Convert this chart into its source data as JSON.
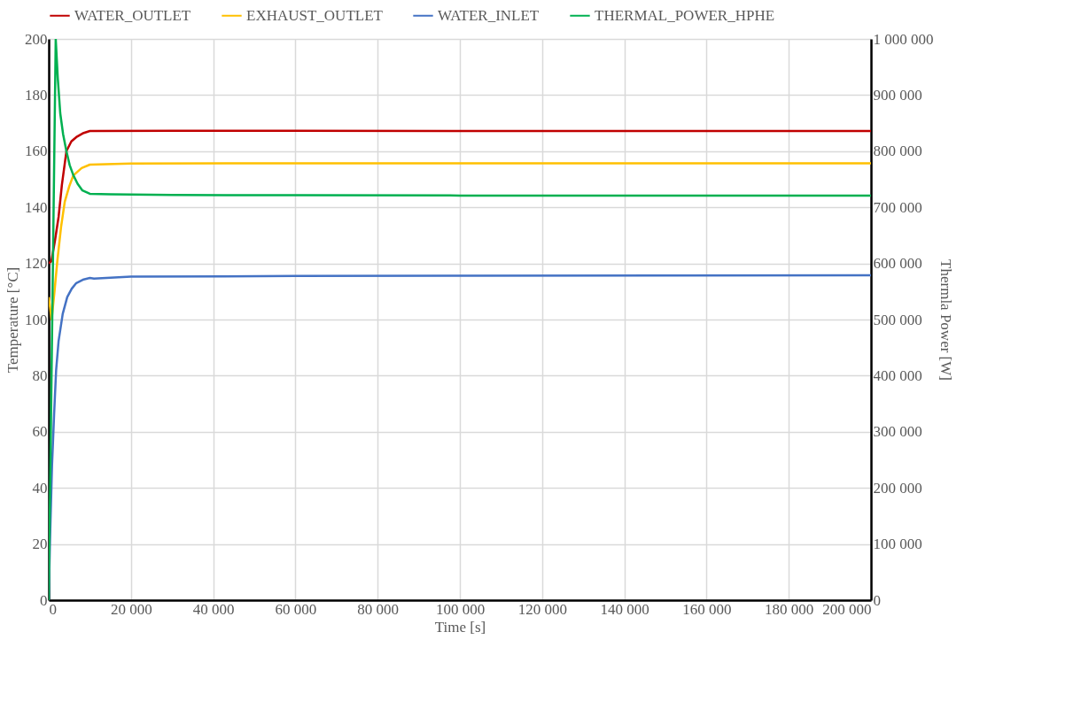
{
  "chart_data": {
    "type": "line",
    "xlabel": "Time [s]",
    "ylabel": "Temperature [°C]",
    "y2label": "Thermla Power [W]",
    "xlim": [
      0,
      200000
    ],
    "xticks": [
      0,
      {
        "value": 20000,
        "label": "20 000"
      },
      {
        "value": 40000,
        "label": "40 000"
      },
      {
        "value": 60000,
        "label": "60 000"
      },
      {
        "value": 80000,
        "label": "80 000"
      },
      {
        "value": 100000,
        "label": "100 000"
      },
      {
        "value": 120000,
        "label": "120 000"
      },
      {
        "value": 140000,
        "label": "140 000"
      },
      {
        "value": 160000,
        "label": "160 000"
      },
      {
        "value": 180000,
        "label": "180 000"
      },
      {
        "value": 200000,
        "label": "200 000"
      }
    ],
    "ylim": [
      0,
      200
    ],
    "yticks": [
      0,
      20,
      40,
      60,
      80,
      100,
      120,
      140,
      160,
      180,
      200
    ],
    "y2lim": [
      0,
      1000000
    ],
    "y2ticks": [
      0,
      {
        "value": 100000,
        "label": "100 000"
      },
      {
        "value": 200000,
        "label": "200 000"
      },
      {
        "value": 300000,
        "label": "300 000"
      },
      {
        "value": 400000,
        "label": "400 000"
      },
      {
        "value": 500000,
        "label": "500 000"
      },
      {
        "value": 600000,
        "label": "600 000"
      },
      {
        "value": 700000,
        "label": "700 000"
      },
      {
        "value": 800000,
        "label": "800 000"
      },
      {
        "value": 900000,
        "label": "900 000"
      },
      {
        "value": 1000000,
        "label": "1 000 000"
      }
    ],
    "grid": true,
    "legend": "top",
    "marker": "none",
    "line_style": "solid",
    "series": [
      {
        "name": "WATER_OUTLET",
        "color": "#c00000",
        "x": [
          0,
          650,
          1500,
          2400,
          3200,
          4300,
          5500,
          6700,
          8500,
          10000,
          30000,
          60000,
          100000,
          150000,
          200000
        ],
        "values": [
          120,
          120.8,
          128,
          136.6,
          148,
          160,
          163.5,
          165,
          166.5,
          167.2,
          167.3,
          167.3,
          167.2,
          167.2,
          167.2
        ]
      },
      {
        "name": "EXHAUST_OUTLET",
        "color": "#ffc000",
        "x": [
          0,
          700,
          1400,
          2100,
          3000,
          3900,
          5000,
          6000,
          8000,
          10000,
          20000,
          60000,
          100000,
          150000,
          200000
        ],
        "values": [
          108,
          100,
          110,
          121,
          133,
          142,
          147.5,
          151.4,
          154,
          155.2,
          155.6,
          155.7,
          155.7,
          155.7,
          155.7
        ]
      },
      {
        "name": "WATER_INLET",
        "color": "#4472c4",
        "x": [
          0,
          300,
          800,
          1300,
          1800,
          2400,
          3400,
          4500,
          5600,
          6700,
          8500,
          10000,
          11000,
          20000,
          60000,
          100000,
          150000,
          200000
        ],
        "values": [
          0,
          21,
          48,
          66,
          82,
          92.4,
          102,
          108,
          111,
          113,
          114.3,
          114.8,
          114.6,
          115.3,
          115.5,
          115.6,
          115.7,
          115.8
        ]
      },
      {
        "name": "THERMAL_POWER_HPHE",
        "color": "#00b050",
        "axis": "y2",
        "x": [
          0,
          1700,
          2200,
          2800,
          3500,
          4300,
          5100,
          6000,
          7000,
          8200,
          10000,
          15000,
          30000,
          60000,
          100000,
          150000,
          200000
        ],
        "values": [
          0,
          1000000,
          930000,
          867500,
          830000,
          800000,
          775000,
          757000,
          742000,
          730000,
          724000,
          723000,
          722000,
          721500,
          721000,
          721000,
          721000
        ]
      }
    ]
  }
}
